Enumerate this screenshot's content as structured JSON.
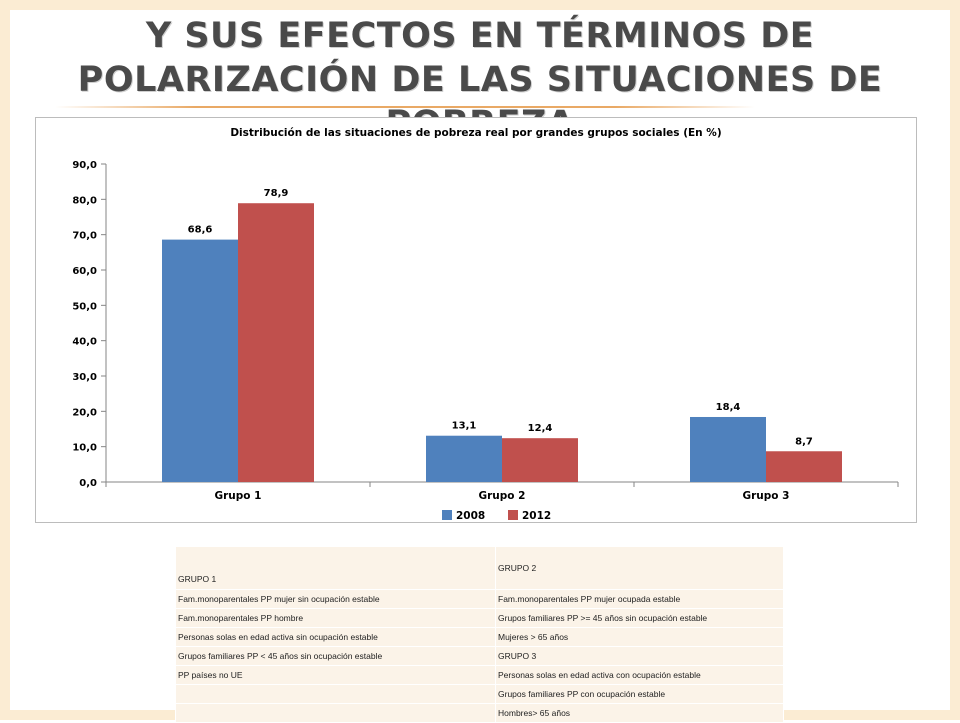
{
  "slide": {
    "title": "Y sus efectos en términos de polarización de las situaciones de pobreza"
  },
  "colors": {
    "series_2008": "#4f81bd",
    "series_2012": "#c0504d",
    "accent_line": "#e9a965",
    "table_bg": "#fbf3e8"
  },
  "chart_data": {
    "type": "bar",
    "title": "Distribución de las situaciones de pobreza real por grandes grupos sociales (En %)",
    "categories": [
      "Grupo 1",
      "Grupo 2",
      "Grupo 3"
    ],
    "series": [
      {
        "name": "2008",
        "values": [
          68.6,
          13.1,
          18.4
        ],
        "labels": [
          "68,6",
          "13,1",
          "18,4"
        ]
      },
      {
        "name": "2012",
        "values": [
          78.9,
          12.4,
          8.7
        ],
        "labels": [
          "78,9",
          "12,4",
          "8,7"
        ]
      }
    ],
    "ylim": [
      0,
      90
    ],
    "yticks": [
      0,
      10,
      20,
      30,
      40,
      50,
      60,
      70,
      80,
      90
    ],
    "ytick_labels": [
      "0,0",
      "10,0",
      "20,0",
      "30,0",
      "40,0",
      "50,0",
      "60,0",
      "70,0",
      "80,0",
      "90,0"
    ],
    "xlabel": "",
    "ylabel": "",
    "grid": false,
    "legend": "bottom"
  },
  "table": {
    "header": {
      "col1": "GRUPO 1",
      "col2": "GRUPO 2"
    },
    "rows": [
      [
        "Fam.monoparentales PP mujer sin ocupación estable",
        "Fam.monoparentales PP mujer ocupada estable"
      ],
      [
        "Fam.monoparentales PP hombre",
        "Grupos familiares PP >= 45 años sin ocupación estable"
      ],
      [
        "Personas solas en edad activa sin ocupación estable",
        "Mujeres > 65 años"
      ],
      [
        "Grupos familiares PP < 45 años sin ocupación estable",
        "GRUPO 3"
      ],
      [
        "PP países no UE",
        "Personas solas en edad activa con ocupación estable"
      ],
      [
        "",
        "Grupos familiares PP con ocupación estable"
      ],
      [
        "",
        "Hombres> 65 años"
      ]
    ]
  }
}
